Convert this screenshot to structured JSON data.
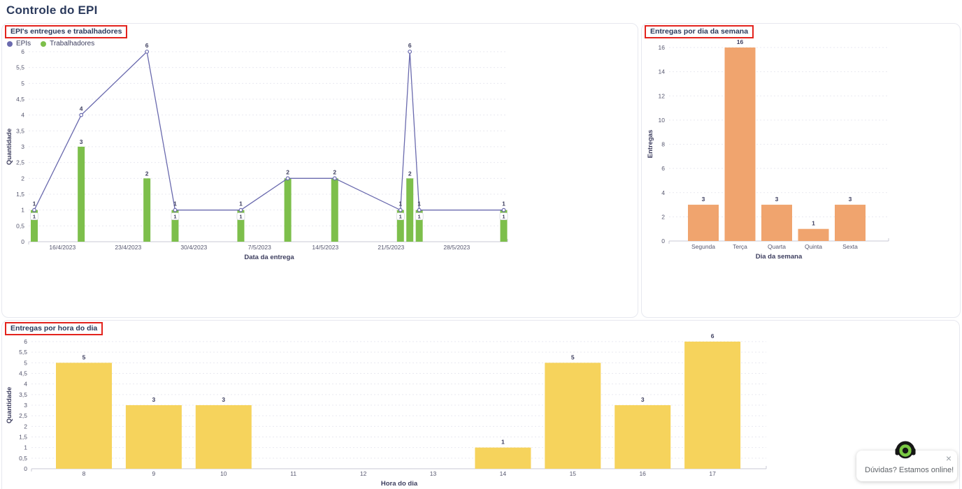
{
  "page": {
    "title": "Controle do EPI"
  },
  "colors": {
    "accent_red_box": "#e3231d",
    "heading": "#2b3a5c",
    "tick_text": "#55566e",
    "value_label": "#3c3d5e",
    "gridline": "#e9e9f0",
    "axis_line": "#c9cad4"
  },
  "chart_data": [
    {
      "id": "epis-trabalhadores",
      "type": "line+bar",
      "title": "EPI's entregues e trabalhadores",
      "xlabel": "Data da entrega",
      "ylabel": "Quantidade",
      "ylim": [
        0,
        6
      ],
      "ytick_step": 0.5,
      "grid": "dashed",
      "legend_position": "top-left",
      "legend": [
        {
          "label": "EPIs",
          "color": "#6a6aae"
        },
        {
          "label": "Trabalhadores",
          "color": "#7dbf4b"
        }
      ],
      "line_color": "#6a6aae",
      "bar_color": "#7dbf4b",
      "x_ticks": [
        {
          "label": "16/4/2023",
          "day": 3
        },
        {
          "label": "23/4/2023",
          "day": 10
        },
        {
          "label": "30/4/2023",
          "day": 17
        },
        {
          "label": "7/5/2023",
          "day": 24
        },
        {
          "label": "14/5/2023",
          "day": 31
        },
        {
          "label": "21/5/2023",
          "day": 38
        },
        {
          "label": "28/5/2023",
          "day": 45
        }
      ],
      "points": [
        {
          "date": "13/4/2023",
          "day": 0,
          "epis": 1,
          "trabalhadores": 1
        },
        {
          "date": "18/4/2023",
          "day": 5,
          "epis": 4,
          "trabalhadores": 3
        },
        {
          "date": "25/4/2023",
          "day": 12,
          "epis": 6,
          "trabalhadores": 2
        },
        {
          "date": "28/4/2023",
          "day": 15,
          "epis": 1,
          "trabalhadores": 1
        },
        {
          "date": "5/5/2023",
          "day": 22,
          "epis": 1,
          "trabalhadores": 1
        },
        {
          "date": "10/5/2023",
          "day": 27,
          "epis": 2,
          "trabalhadores": 2
        },
        {
          "date": "15/5/2023",
          "day": 32,
          "epis": 2,
          "trabalhadores": 2
        },
        {
          "date": "22/5/2023",
          "day": 39,
          "epis": 1,
          "trabalhadores": 1
        },
        {
          "date": "23/5/2023",
          "day": 40,
          "epis": 6,
          "trabalhadores": 2
        },
        {
          "date": "24/5/2023",
          "day": 41,
          "epis": 1,
          "trabalhadores": 1
        },
        {
          "date": "2/6/2023",
          "day": 50,
          "epis": 1,
          "trabalhadores": 1
        }
      ]
    },
    {
      "id": "entregas-dia-semana",
      "type": "bar",
      "title": "Entregas por dia da semana",
      "xlabel": "Dia da semana",
      "ylabel": "Entregas",
      "ylim": [
        0,
        16
      ],
      "ytick_step": 2,
      "grid": "dashed",
      "bar_color": "#f0a46e",
      "categories": [
        "Segunda",
        "Terça",
        "Quarta",
        "Quinta",
        "Sexta"
      ],
      "values": [
        3,
        16,
        3,
        1,
        3
      ]
    },
    {
      "id": "entregas-hora-dia",
      "type": "bar",
      "title": "Entregas por hora do dia",
      "xlabel": "Hora do dia",
      "ylabel": "Quantidade",
      "ylim": [
        0,
        6
      ],
      "ytick_step": 0.5,
      "grid": "dashed",
      "bar_color": "#f6d35c",
      "categories": [
        "8",
        "9",
        "10",
        "11",
        "12",
        "13",
        "14",
        "15",
        "16",
        "17"
      ],
      "values": [
        5,
        3,
        3,
        0,
        0,
        0,
        1,
        5,
        3,
        6
      ]
    }
  ],
  "chat_widget": {
    "message": "Dúvidas? Estamos online!",
    "close_label": "×"
  }
}
